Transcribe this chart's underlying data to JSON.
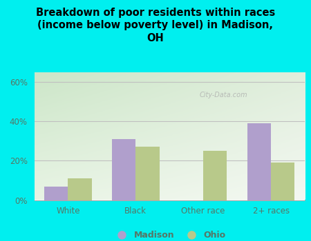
{
  "title": "Breakdown of poor residents within races\n(income below poverty level) in Madison,\nOH",
  "categories": [
    "White",
    "Black",
    "Other race",
    "2+ races"
  ],
  "madison_values": [
    7,
    31,
    0,
    39
  ],
  "ohio_values": [
    11,
    27,
    25,
    19
  ],
  "madison_color": "#b09fcc",
  "ohio_color": "#b8c98a",
  "bar_width": 0.35,
  "ylim": [
    0,
    65
  ],
  "ytick_labels": [
    "0%",
    "20%",
    "40%",
    "60%"
  ],
  "ytick_vals": [
    0,
    20,
    40,
    60
  ],
  "background_color": "#00efef",
  "plot_bg_topleft": "#c8e6c0",
  "plot_bg_right": "#e8f0e0",
  "plot_bg_bottom": "#f0f8f0",
  "grid_color": "#c0c0c0",
  "title_fontsize": 10.5,
  "axis_fontsize": 8.5,
  "legend_fontsize": 9,
  "watermark": "City-Data.com",
  "text_color": "#557766"
}
